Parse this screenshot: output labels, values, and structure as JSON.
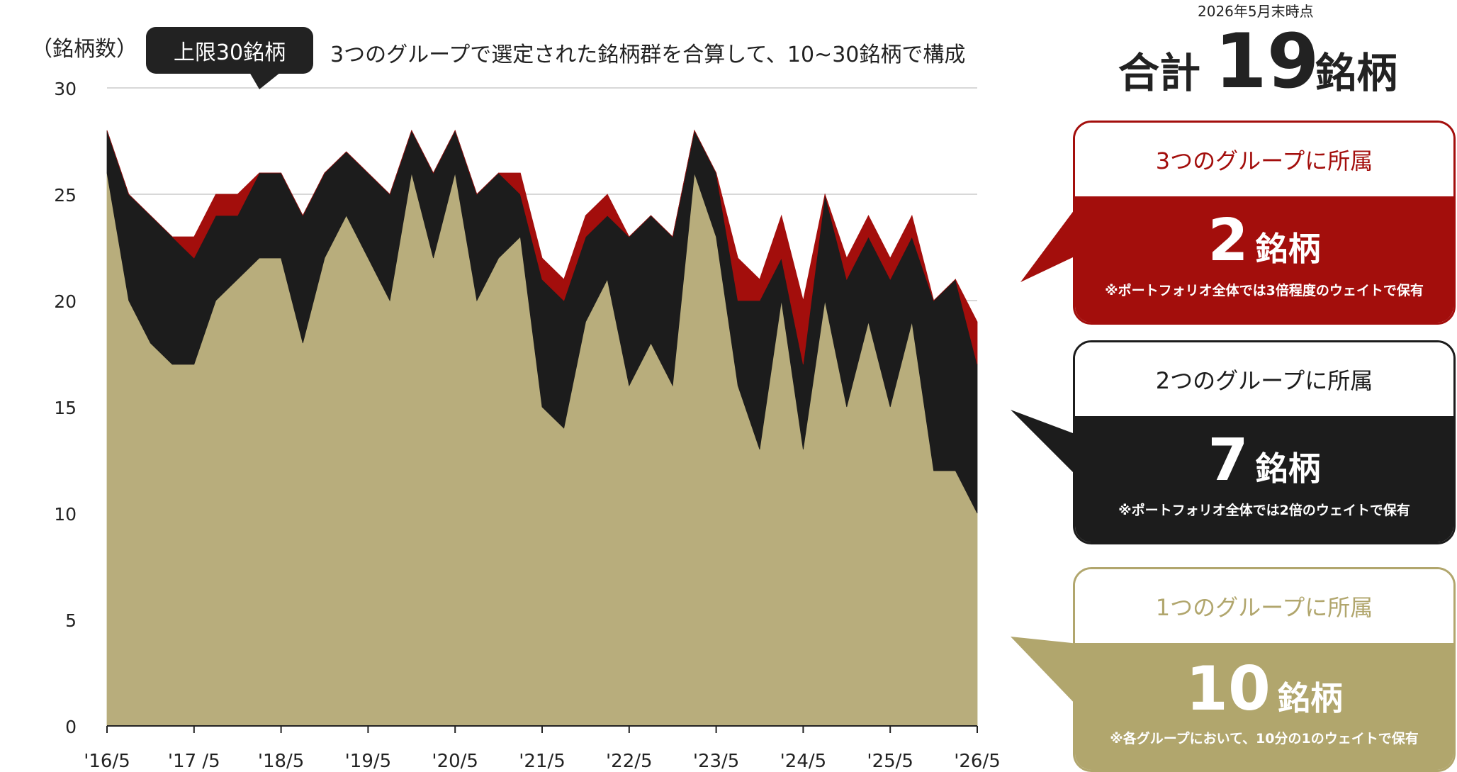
{
  "chart_data": {
    "type": "area",
    "stacked": true,
    "ylabel": "（銘柄数）",
    "ylim": [
      0,
      30
    ],
    "yticks": [
      0,
      5,
      10,
      15,
      20,
      25,
      30
    ],
    "grid": true,
    "xtick_labels": [
      "'16/5",
      "'17 /5",
      "'18/5",
      "'19/5",
      "'20/5",
      "'21/5",
      "'22/5",
      "'23/5",
      "'24/5",
      "'25/5",
      "'26/5"
    ],
    "n_points": 41,
    "series": [
      {
        "name": "1つのグループに所属",
        "color": "#b8ad7c",
        "values": [
          26,
          20,
          18,
          17,
          17,
          20,
          21,
          22,
          22,
          18,
          22,
          24,
          22,
          20,
          26,
          22,
          26,
          20,
          22,
          23,
          15,
          14,
          19,
          21,
          16,
          18,
          16,
          26,
          23,
          16,
          13,
          20,
          13,
          20,
          15,
          19,
          15,
          19,
          12,
          12,
          10
        ]
      },
      {
        "name": "2つのグループに所属",
        "color": "#1c1c1c",
        "values": [
          2,
          5,
          6,
          6,
          5,
          4,
          3,
          4,
          4,
          6,
          4,
          3,
          4,
          5,
          2,
          4,
          2,
          5,
          4,
          2,
          6,
          6,
          4,
          3,
          7,
          6,
          7,
          2,
          3,
          4,
          7,
          2,
          4,
          5,
          6,
          4,
          6,
          4,
          8,
          9,
          7
        ]
      },
      {
        "name": "3つのグループに所属",
        "color": "#a30e0c",
        "values": [
          0,
          0,
          0,
          0,
          1,
          1,
          1,
          0,
          0,
          0,
          0,
          0,
          0,
          0,
          0,
          0,
          0,
          0,
          0,
          1,
          1,
          1,
          1,
          1,
          0,
          0,
          0,
          0,
          0,
          2,
          1,
          2,
          3,
          0,
          1,
          1,
          1,
          1,
          0,
          0,
          2
        ]
      }
    ]
  },
  "header": {
    "tag": "上限30銘柄",
    "headline": "3つのグループで選定された銘柄群を合算して、10~30銘柄で構成"
  },
  "summary": {
    "as_of": "2026年5月末時点",
    "total_prefix": "合計",
    "total_count": "19",
    "total_suffix": "銘柄",
    "unit": "銘柄"
  },
  "cards": {
    "three": {
      "title": "3つのグループに所属",
      "count": "2",
      "note": "※ポートフォリオ全体では3倍程度のウェイトで保有"
    },
    "two": {
      "title": "2つのグループに所属",
      "count": "7",
      "note": "※ポートフォリオ全体では2倍のウェイトで保有"
    },
    "one": {
      "title": "1つのグループに所属",
      "count": "10",
      "note": "※各グループにおいて、10分の1のウェイトで保有"
    }
  }
}
